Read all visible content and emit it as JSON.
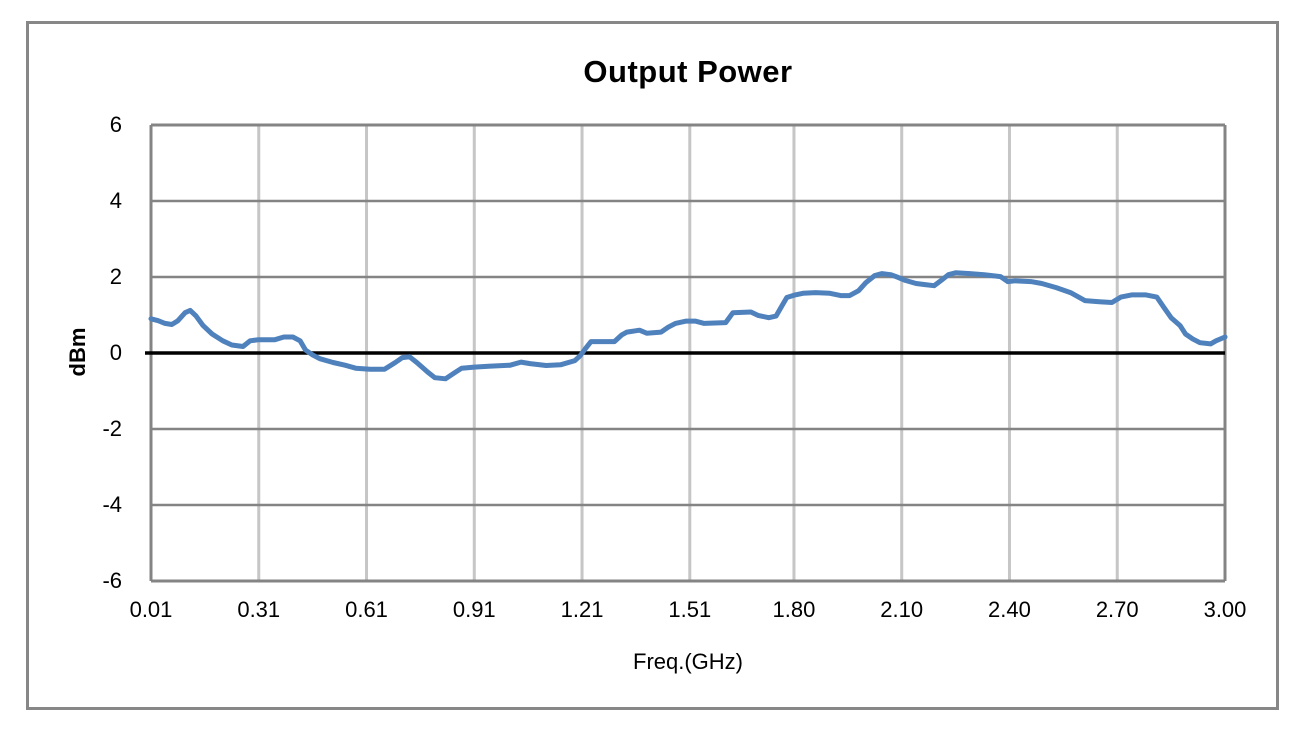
{
  "title": "Output Power",
  "y_axis": {
    "title": "dBm",
    "tick_labels": [
      "6",
      "4",
      "2",
      "0",
      "-2",
      "-4",
      "-6"
    ]
  },
  "x_axis": {
    "title": "Freq.(GHz)",
    "tick_labels": [
      "0.01",
      "0.31",
      "0.61",
      "0.91",
      "1.21",
      "1.51",
      "1.80",
      "2.10",
      "2.40",
      "2.70",
      "3.00"
    ]
  },
  "colors": {
    "series": "#4F81BD",
    "grid_horizontal": "#848484",
    "grid_vertical": "#C6C6C6",
    "axis_border": "#848484",
    "zero_line": "#000000",
    "outer_border": "#878787"
  },
  "chart_data": {
    "type": "line",
    "title": "Output Power",
    "xlabel": "Freq.(GHz)",
    "ylabel": "dBm",
    "xlim": [
      0.01,
      3.0
    ],
    "ylim": [
      -6,
      6
    ],
    "x_ticks": [
      0.01,
      0.31,
      0.61,
      0.91,
      1.21,
      1.51,
      1.8,
      2.1,
      2.4,
      2.7,
      3.0
    ],
    "y_ticks": [
      6,
      4,
      2,
      0,
      -2,
      -4,
      -6
    ],
    "grid": true,
    "legend": false,
    "zero_line": true,
    "series": [
      {
        "name": "Output Power",
        "color": "#4F81BD",
        "points": [
          [
            0.01,
            0.9
          ],
          [
            0.03,
            0.85
          ],
          [
            0.049,
            0.78
          ],
          [
            0.068,
            0.75
          ],
          [
            0.085,
            0.85
          ],
          [
            0.105,
            1.06
          ],
          [
            0.119,
            1.12
          ],
          [
            0.135,
            0.98
          ],
          [
            0.155,
            0.72
          ],
          [
            0.18,
            0.5
          ],
          [
            0.21,
            0.32
          ],
          [
            0.235,
            0.21
          ],
          [
            0.266,
            0.17
          ],
          [
            0.286,
            0.32
          ],
          [
            0.31,
            0.35
          ],
          [
            0.355,
            0.35
          ],
          [
            0.38,
            0.42
          ],
          [
            0.405,
            0.42
          ],
          [
            0.425,
            0.32
          ],
          [
            0.44,
            0.08
          ],
          [
            0.46,
            -0.05
          ],
          [
            0.48,
            -0.15
          ],
          [
            0.517,
            -0.25
          ],
          [
            0.55,
            -0.32
          ],
          [
            0.58,
            -0.4
          ],
          [
            0.62,
            -0.43
          ],
          [
            0.66,
            -0.43
          ],
          [
            0.69,
            -0.25
          ],
          [
            0.71,
            -0.12
          ],
          [
            0.73,
            -0.1
          ],
          [
            0.75,
            -0.25
          ],
          [
            0.78,
            -0.5
          ],
          [
            0.8,
            -0.65
          ],
          [
            0.83,
            -0.68
          ],
          [
            0.855,
            -0.52
          ],
          [
            0.875,
            -0.4
          ],
          [
            0.91,
            -0.37
          ],
          [
            0.95,
            -0.35
          ],
          [
            1.01,
            -0.32
          ],
          [
            1.04,
            -0.24
          ],
          [
            1.065,
            -0.28
          ],
          [
            1.11,
            -0.33
          ],
          [
            1.15,
            -0.31
          ],
          [
            1.19,
            -0.2
          ],
          [
            1.205,
            -0.07
          ],
          [
            1.22,
            0.12
          ],
          [
            1.235,
            0.3
          ],
          [
            1.3,
            0.3
          ],
          [
            1.32,
            0.47
          ],
          [
            1.335,
            0.55
          ],
          [
            1.37,
            0.6
          ],
          [
            1.39,
            0.52
          ],
          [
            1.43,
            0.55
          ],
          [
            1.45,
            0.68
          ],
          [
            1.47,
            0.78
          ],
          [
            1.5,
            0.84
          ],
          [
            1.525,
            0.84
          ],
          [
            1.55,
            0.78
          ],
          [
            1.61,
            0.8
          ],
          [
            1.63,
            1.06
          ],
          [
            1.68,
            1.08
          ],
          [
            1.7,
            0.99
          ],
          [
            1.73,
            0.93
          ],
          [
            1.75,
            0.97
          ],
          [
            1.77,
            1.3
          ],
          [
            1.78,
            1.46
          ],
          [
            1.8,
            1.52
          ],
          [
            1.825,
            1.57
          ],
          [
            1.86,
            1.59
          ],
          [
            1.9,
            1.57
          ],
          [
            1.93,
            1.51
          ],
          [
            1.955,
            1.51
          ],
          [
            1.98,
            1.64
          ],
          [
            2.0,
            1.85
          ],
          [
            2.025,
            2.04
          ],
          [
            2.045,
            2.09
          ],
          [
            2.07,
            2.06
          ],
          [
            2.09,
            1.99
          ],
          [
            2.11,
            1.91
          ],
          [
            2.14,
            1.83
          ],
          [
            2.165,
            1.8
          ],
          [
            2.19,
            1.77
          ],
          [
            2.21,
            1.91
          ],
          [
            2.23,
            2.06
          ],
          [
            2.25,
            2.11
          ],
          [
            2.29,
            2.09
          ],
          [
            2.33,
            2.06
          ],
          [
            2.375,
            2.01
          ],
          [
            2.395,
            1.88
          ],
          [
            2.415,
            1.9
          ],
          [
            2.46,
            1.88
          ],
          [
            2.49,
            1.83
          ],
          [
            2.53,
            1.72
          ],
          [
            2.57,
            1.59
          ],
          [
            2.61,
            1.38
          ],
          [
            2.65,
            1.35
          ],
          [
            2.685,
            1.33
          ],
          [
            2.71,
            1.47
          ],
          [
            2.74,
            1.53
          ],
          [
            2.78,
            1.53
          ],
          [
            2.81,
            1.47
          ],
          [
            2.83,
            1.2
          ],
          [
            2.85,
            0.93
          ],
          [
            2.875,
            0.72
          ],
          [
            2.89,
            0.5
          ],
          [
            2.91,
            0.37
          ],
          [
            2.93,
            0.27
          ],
          [
            2.96,
            0.24
          ],
          [
            2.975,
            0.32
          ],
          [
            3.0,
            0.42
          ]
        ]
      }
    ]
  }
}
